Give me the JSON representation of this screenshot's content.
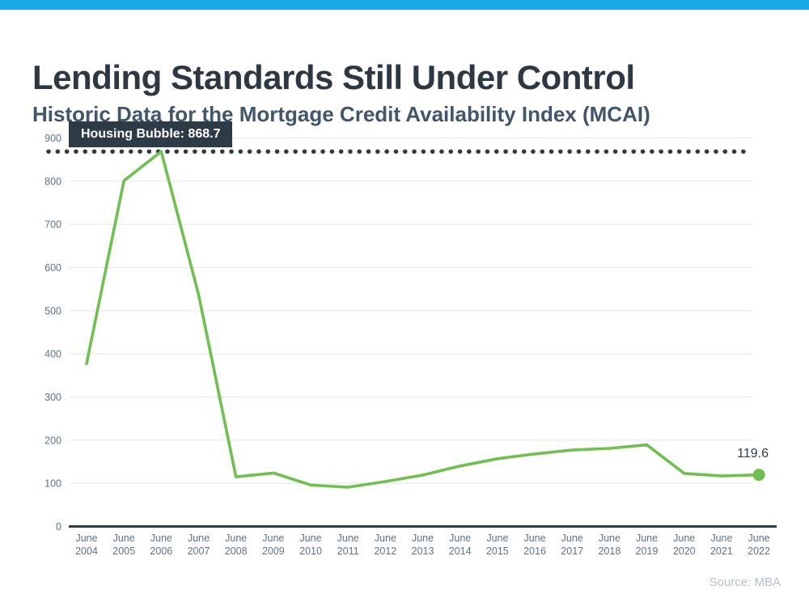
{
  "page": {
    "title": "Lending Standards Still Under Control",
    "subtitle": "Historic Data for the Mortgage Credit Availability Index (MCAI)",
    "source": "Source: MBA",
    "accent_bar_color": "#17a8e8"
  },
  "chart_data": {
    "type": "line",
    "title": "Historic Data for the Mortgage Credit Availability Index (MCAI)",
    "categories": [
      "June 2004",
      "June 2005",
      "June 2006",
      "June 2007",
      "June 2008",
      "June 2009",
      "June 2010",
      "June 2011",
      "June 2012",
      "June 2013",
      "June 2014",
      "June 2015",
      "June 2016",
      "June 2017",
      "June 2018",
      "June 2019",
      "June 2020",
      "June 2021",
      "June 2022"
    ],
    "values": [
      377,
      801,
      868.7,
      537,
      115,
      124,
      96,
      91,
      104,
      119,
      140,
      157,
      168,
      177,
      181,
      189,
      123,
      117,
      119.6
    ],
    "series_name": "MCAI",
    "xlabel": "",
    "ylabel": "",
    "ylim": [
      0,
      950
    ],
    "yticks": [
      0,
      100,
      200,
      300,
      400,
      500,
      600,
      700,
      800,
      900
    ],
    "grid": true,
    "legend": false,
    "annotations": {
      "peak_label": "Housing Bubble: 868.7",
      "peak_value": 868.7,
      "endpoint_label": "119.6",
      "endpoint_value": 119.6
    },
    "colors": {
      "line": "#6fc04f",
      "endpoint_dot": "#6fc04f",
      "dotted_reference": "#2d3b47",
      "axis": "#2d3b47",
      "grid": "#e4e6e8",
      "tick_text": "#5f7384"
    }
  }
}
